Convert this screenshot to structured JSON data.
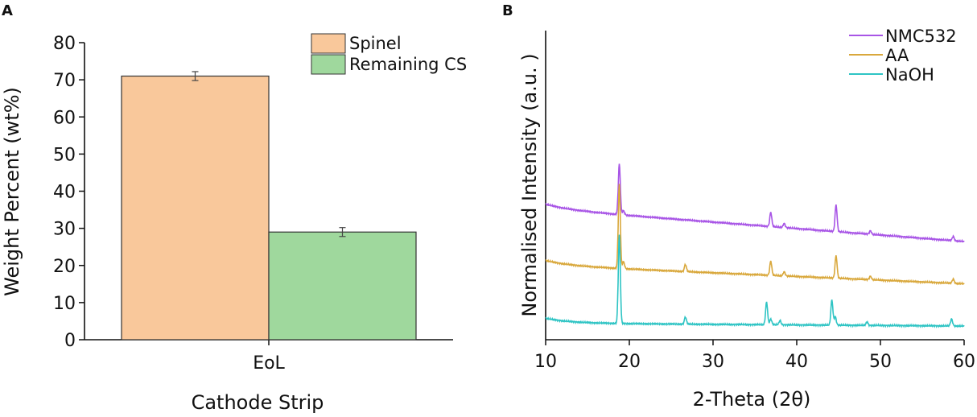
{
  "chart_data": [
    {
      "panel": "A",
      "type": "bar",
      "categories": [
        "EoL"
      ],
      "series": [
        {
          "name": "Spinel",
          "values": [
            71
          ],
          "errors": [
            1.2
          ],
          "color": "#f9c89b"
        },
        {
          "name": "Remaining CS",
          "values": [
            29
          ],
          "errors": [
            1.2
          ],
          "color": "#9fd89d"
        }
      ],
      "xlabel": "Cathode Strip",
      "ylabel": "Weight Percent (wt%)",
      "ylim": [
        0,
        80
      ],
      "yticks": [
        "0",
        "10",
        "20",
        "30",
        "40",
        "50",
        "60",
        "70",
        "80"
      ],
      "ytick_values": [
        0,
        10,
        20,
        30,
        40,
        50,
        60,
        70,
        80
      ],
      "legend": "top-right"
    },
    {
      "panel": "B",
      "type": "line",
      "xlabel": "2-Theta (2θ)",
      "ylabel": "Normalised Intensity (a.u. )",
      "xlim": [
        10,
        60
      ],
      "xticks": [
        "10",
        "20",
        "30",
        "40",
        "50",
        "60"
      ],
      "xtick_values": [
        10,
        20,
        30,
        40,
        50,
        60
      ],
      "legend": "top-right",
      "series": [
        {
          "name": "NMC532",
          "color": "#a855e6",
          "baseline_start": 8.3,
          "baseline_end": 6.0,
          "peaks": [
            [
              18.8,
              3.6
            ],
            [
              19.3,
              0.3
            ],
            [
              36.9,
              1.0
            ],
            [
              38.5,
              0.3
            ],
            [
              44.7,
              1.9
            ],
            [
              48.8,
              0.25
            ],
            [
              58.7,
              0.3
            ]
          ]
        },
        {
          "name": "AA",
          "color": "#d9a83c",
          "baseline_start": 4.3,
          "baseline_end": 3.0,
          "peaks": [
            [
              18.8,
              6.0
            ],
            [
              19.3,
              0.5
            ],
            [
              26.7,
              0.5
            ],
            [
              36.9,
              1.0
            ],
            [
              38.5,
              0.3
            ],
            [
              44.7,
              1.6
            ],
            [
              48.8,
              0.25
            ],
            [
              58.7,
              0.3
            ]
          ]
        },
        {
          "name": "NaOH",
          "color": "#2ec4c4",
          "baseline_start": 0.2,
          "baseline_end": 0.0,
          "peaks": [
            [
              18.8,
              6.3
            ],
            [
              26.7,
              0.5
            ],
            [
              36.4,
              1.6
            ],
            [
              36.9,
              0.4
            ],
            [
              38.0,
              0.3
            ],
            [
              44.2,
              1.8
            ],
            [
              44.6,
              0.6
            ],
            [
              48.4,
              0.25
            ],
            [
              58.5,
              0.5
            ]
          ]
        }
      ]
    }
  ],
  "panels": {
    "a": "A",
    "b": "B"
  }
}
